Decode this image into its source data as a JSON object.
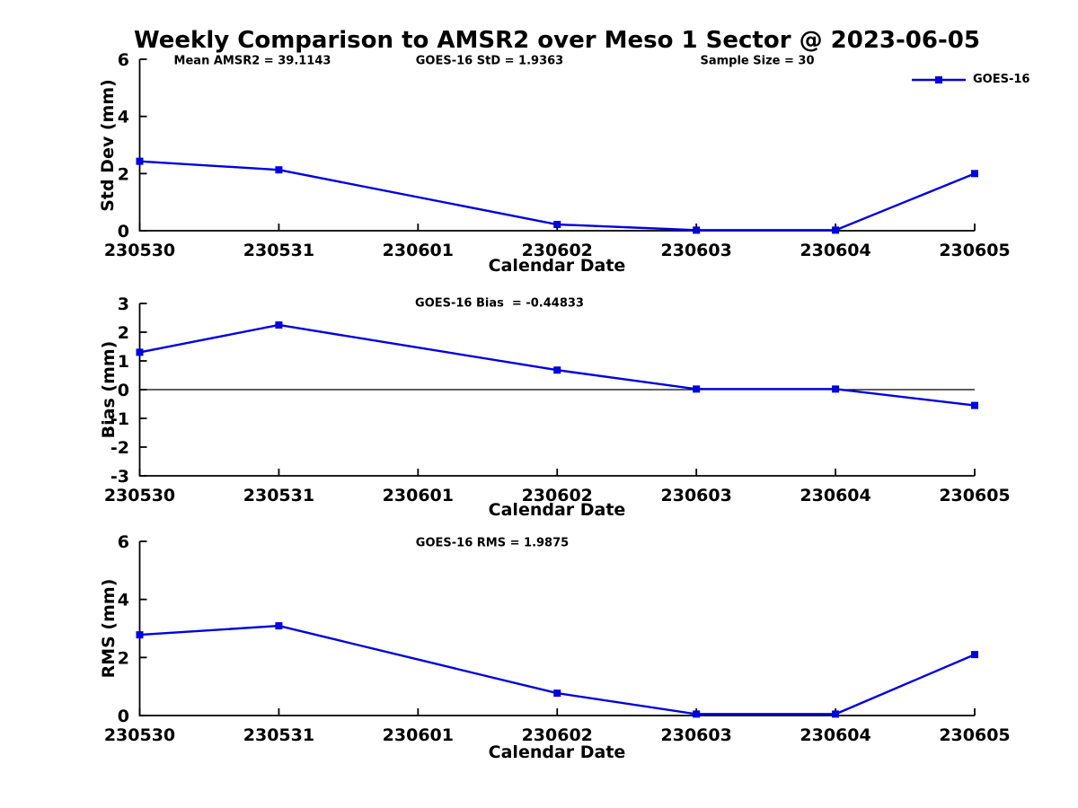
{
  "page": {
    "title": "Weekly Comparison to AMSR2 over Meso 1 Sector @ 2023-06-05"
  },
  "legend": {
    "label": "GOES-16",
    "color": "#0000e0"
  },
  "colors": {
    "series_blue": "#0000e0",
    "axis_black": "#000000"
  },
  "chart_data": [
    {
      "type": "line",
      "panel": "std-dev",
      "ylabel": "Std Dev (mm)",
      "xlabel": "Calendar Date",
      "ylim": [
        0,
        6
      ],
      "yticks": [
        0,
        2,
        4,
        6
      ],
      "grid": false,
      "zero_line": false,
      "legend_position": "top-right-outside",
      "categories": [
        "230530",
        "230531",
        "230601",
        "230602",
        "230603",
        "230604",
        "230605"
      ],
      "annotations": [
        "Mean AMSR2 = 39.1143",
        "GOES-16 StD = 1.9363",
        "Sample Size = 30"
      ],
      "series": [
        {
          "name": "GOES-16",
          "color": "#0000e0",
          "marker": "square",
          "x": [
            "230530",
            "230531",
            "230602",
            "230603",
            "230604",
            "230605"
          ],
          "y": [
            2.43,
            2.13,
            0.22,
            0.02,
            0.02,
            2.0
          ]
        }
      ]
    },
    {
      "type": "line",
      "panel": "bias",
      "ylabel": "Bias (mm)",
      "xlabel": "Calendar Date",
      "ylim": [
        -3,
        3
      ],
      "yticks": [
        3,
        2,
        1,
        0,
        -1,
        -2,
        -3
      ],
      "grid": false,
      "zero_line": true,
      "categories": [
        "230530",
        "230531",
        "230601",
        "230602",
        "230603",
        "230604",
        "230605"
      ],
      "annotations": [
        "GOES-16 Bias  = -0.44833"
      ],
      "series": [
        {
          "name": "GOES-16",
          "color": "#0000e0",
          "marker": "square",
          "x": [
            "230530",
            "230531",
            "230602",
            "230603",
            "230604",
            "230605"
          ],
          "y": [
            1.3,
            2.25,
            0.68,
            0.02,
            0.02,
            -0.55
          ]
        }
      ]
    },
    {
      "type": "line",
      "panel": "rms",
      "ylabel": "RMS (mm)",
      "xlabel": "Calendar Date",
      "ylim": [
        0,
        6
      ],
      "yticks": [
        0,
        2,
        4,
        6
      ],
      "grid": false,
      "zero_line": false,
      "categories": [
        "230530",
        "230531",
        "230601",
        "230602",
        "230603",
        "230604",
        "230605"
      ],
      "annotations": [
        "GOES-16 RMS = 1.9875"
      ],
      "series": [
        {
          "name": "GOES-16",
          "color": "#0000e0",
          "marker": "square",
          "x": [
            "230530",
            "230531",
            "230602",
            "230603",
            "230604",
            "230605"
          ],
          "y": [
            2.78,
            3.09,
            0.77,
            0.05,
            0.05,
            2.1
          ]
        }
      ]
    }
  ]
}
